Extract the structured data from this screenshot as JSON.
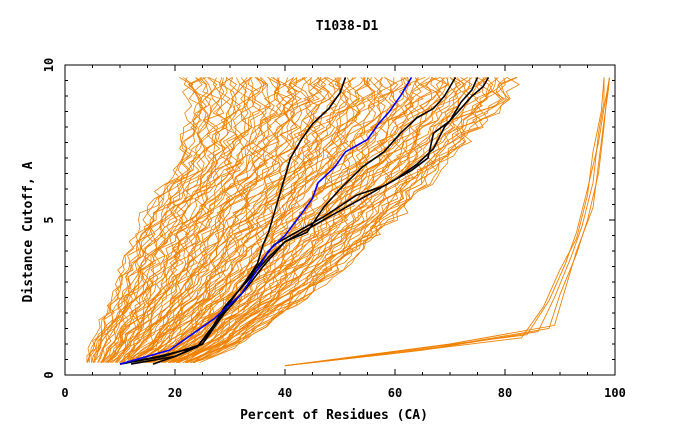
{
  "chart_data": {
    "type": "line",
    "title": "T1038-D1",
    "xlabel": "Percent of Residues (CA)",
    "ylabel": "Distance Cutoff, A",
    "xlim": [
      0,
      100
    ],
    "ylim": [
      0,
      10
    ],
    "x_ticks": [
      "0",
      "20",
      "40",
      "60",
      "80",
      "100"
    ],
    "y_ticks": [
      "0",
      "5",
      "10"
    ],
    "grid": false,
    "legend": "none",
    "colors": {
      "bulk_models": "#f08000",
      "highlight_black": "#000000",
      "highlight_blue": "#0000ff"
    },
    "bulk_band": {
      "description_free": true,
      "count": 120,
      "left_edge": [
        [
          4,
          0.4
        ],
        [
          5,
          1
        ],
        [
          7,
          1.8
        ],
        [
          9,
          2.6
        ],
        [
          11,
          3.6
        ],
        [
          13,
          4.5
        ],
        [
          15,
          5.3
        ],
        [
          18,
          6.1
        ],
        [
          21,
          6.7
        ],
        [
          22,
          7.8
        ],
        [
          23,
          8.8
        ],
        [
          22,
          9.6
        ]
      ],
      "right_edge": [
        [
          24,
          0.4
        ],
        [
          32,
          1
        ],
        [
          38,
          1.8
        ],
        [
          44,
          2.5
        ],
        [
          50,
          3.4
        ],
        [
          56,
          4.4
        ],
        [
          62,
          5.4
        ],
        [
          68,
          6.6
        ],
        [
          74,
          7.8
        ],
        [
          80,
          8.8
        ],
        [
          82,
          9.6
        ]
      ]
    },
    "outlier_series": [
      {
        "values": [
          [
            40,
            0.3
          ],
          [
            62,
            0.8
          ],
          [
            84,
            1.3
          ],
          [
            88,
            2.4
          ],
          [
            91,
            3.6
          ],
          [
            93,
            4.6
          ],
          [
            95,
            6.0
          ],
          [
            97,
            7.5
          ],
          [
            98,
            8.6
          ],
          [
            99,
            9.6
          ]
        ]
      },
      {
        "values": [
          [
            40,
            0.3
          ],
          [
            65,
            0.8
          ],
          [
            86,
            1.4
          ],
          [
            89,
            2.5
          ],
          [
            92,
            3.8
          ],
          [
            94,
            4.8
          ],
          [
            96,
            6.2
          ],
          [
            97,
            7.8
          ],
          [
            98,
            8.8
          ],
          [
            98,
            9.6
          ]
        ]
      },
      {
        "values": [
          [
            40,
            0.3
          ],
          [
            68,
            0.9
          ],
          [
            88,
            1.5
          ],
          [
            90,
            2.6
          ],
          [
            93,
            3.9
          ],
          [
            95,
            5.0
          ],
          [
            97,
            6.5
          ],
          [
            98,
            8.0
          ],
          [
            98.5,
            9.0
          ],
          [
            99,
            9.6
          ]
        ]
      },
      {
        "values": [
          [
            40,
            0.3
          ],
          [
            70,
            1.0
          ],
          [
            89,
            1.6
          ],
          [
            91,
            2.8
          ],
          [
            93,
            4.0
          ],
          [
            96,
            5.4
          ],
          [
            97,
            6.8
          ],
          [
            98,
            8.2
          ],
          [
            98.8,
            9.2
          ],
          [
            99,
            9.6
          ]
        ]
      },
      {
        "values": [
          [
            40,
            0.3
          ],
          [
            60,
            0.7
          ],
          [
            83,
            1.2
          ],
          [
            87,
            2.2
          ],
          [
            90,
            3.4
          ],
          [
            93,
            4.4
          ],
          [
            95,
            5.8
          ],
          [
            96,
            7.2
          ],
          [
            97.5,
            8.5
          ],
          [
            98,
            9.6
          ]
        ]
      }
    ],
    "series": [
      {
        "color": "#000000",
        "values": [
          [
            10,
            0.35
          ],
          [
            17,
            0.6
          ],
          [
            24,
            0.9
          ],
          [
            28,
            1.8
          ],
          [
            31,
            2.6
          ],
          [
            35,
            3.5
          ],
          [
            38,
            4.2
          ],
          [
            42,
            4.6
          ],
          [
            47,
            5.1
          ],
          [
            53,
            5.8
          ],
          [
            58,
            6.1
          ],
          [
            63,
            6.6
          ],
          [
            66,
            7.0
          ],
          [
            67,
            7.8
          ],
          [
            70,
            8.2
          ],
          [
            72,
            8.8
          ],
          [
            74,
            9.2
          ],
          [
            75,
            9.6
          ]
        ]
      },
      {
        "color": "#000000",
        "values": [
          [
            10,
            0.35
          ],
          [
            18,
            0.6
          ],
          [
            25,
            1.0
          ],
          [
            29,
            2.0
          ],
          [
            33,
            2.8
          ],
          [
            36,
            3.5
          ],
          [
            40,
            4.3
          ],
          [
            45,
            4.8
          ],
          [
            50,
            5.3
          ],
          [
            55,
            5.8
          ],
          [
            60,
            6.3
          ],
          [
            64,
            6.8
          ],
          [
            67,
            7.3
          ],
          [
            69,
            8.0
          ],
          [
            72,
            8.6
          ],
          [
            74,
            9.0
          ],
          [
            76,
            9.3
          ],
          [
            77,
            9.6
          ]
        ]
      },
      {
        "color": "#000000",
        "values": [
          [
            16,
            0.35
          ],
          [
            20,
            0.6
          ],
          [
            24,
            0.9
          ],
          [
            27,
            1.6
          ],
          [
            30,
            2.4
          ],
          [
            34,
            3.2
          ],
          [
            37,
            3.8
          ],
          [
            40,
            4.3
          ],
          [
            44,
            4.6
          ],
          [
            47,
            5.4
          ],
          [
            50,
            6.0
          ],
          [
            54,
            6.7
          ],
          [
            58,
            7.2
          ],
          [
            61,
            7.8
          ],
          [
            64,
            8.3
          ],
          [
            67,
            8.6
          ],
          [
            69,
            9.0
          ],
          [
            71,
            9.6
          ]
        ]
      },
      {
        "color": "#000000",
        "values": [
          [
            12,
            0.35
          ],
          [
            20,
            0.6
          ],
          [
            25,
            1.0
          ],
          [
            29,
            2.2
          ],
          [
            32,
            2.8
          ],
          [
            35,
            3.6
          ],
          [
            36,
            4.2
          ],
          [
            37,
            4.6
          ],
          [
            38,
            5.2
          ],
          [
            39,
            5.8
          ],
          [
            40,
            6.4
          ],
          [
            41,
            7.0
          ],
          [
            43,
            7.6
          ],
          [
            45,
            8.1
          ],
          [
            48,
            8.6
          ],
          [
            50,
            9.1
          ],
          [
            51,
            9.6
          ]
        ]
      },
      {
        "color": "#0000ff",
        "values": [
          [
            10,
            0.35
          ],
          [
            19,
            0.8
          ],
          [
            23,
            1.3
          ],
          [
            27,
            1.8
          ],
          [
            32,
            2.6
          ],
          [
            35,
            3.4
          ],
          [
            37,
            4.0
          ],
          [
            40,
            4.5
          ],
          [
            43,
            5.2
          ],
          [
            45,
            5.7
          ],
          [
            46,
            6.2
          ],
          [
            49,
            6.7
          ],
          [
            51,
            7.2
          ],
          [
            55,
            7.6
          ],
          [
            57,
            8.1
          ],
          [
            59,
            8.5
          ],
          [
            61,
            9.0
          ],
          [
            62,
            9.3
          ],
          [
            63,
            9.6
          ]
        ]
      }
    ]
  }
}
